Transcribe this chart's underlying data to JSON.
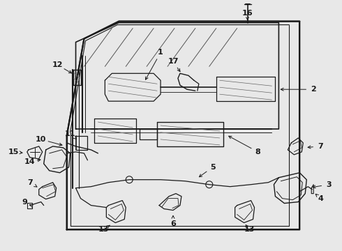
{
  "bg_color": "#e8e8e8",
  "line_color": "#1a1a1a",
  "fig_w": 4.9,
  "fig_h": 3.6,
  "dpi": 100
}
